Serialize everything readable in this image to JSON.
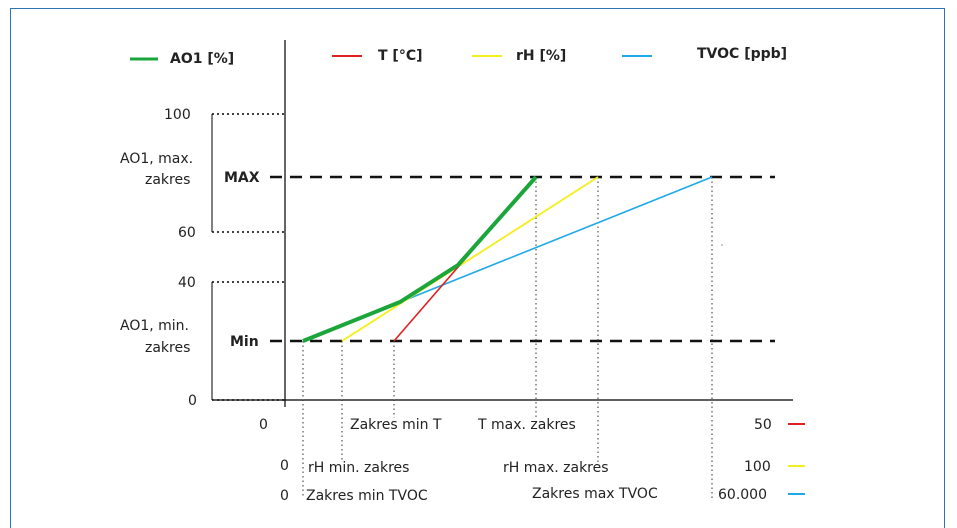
{
  "legend": [
    {
      "label": "AO1 [%]",
      "color": "#1aa63a"
    },
    {
      "label": "T [°C]",
      "color": "#e02020"
    },
    {
      "label": "rH [%]",
      "color": "#f4ee1a"
    },
    {
      "label": "TVOC [ppb]",
      "color": "#1fa9e6"
    }
  ],
  "y_axis": {
    "tick_100": "100",
    "tick_60": "60",
    "tick_40": "40",
    "tick_0": "0",
    "max_label": "MAX",
    "min_label": "Min",
    "range_max_label_1": "AO1, max.",
    "range_max_label_2": "zakres",
    "range_min_label_1": "AO1,  min.",
    "range_min_label_2": "zakres"
  },
  "x_axis": {
    "t_zero": "0",
    "t_min": "Zakres min T",
    "t_max": "T max. zakres",
    "t_end": "50",
    "rh_zero": "0",
    "rh_min": "rH min. zakres",
    "rh_max": "rH max. zakres",
    "rh_end": "100",
    "tvoc_zero": "0",
    "tvoc_min": "Zakres min TVOC",
    "tvoc_max": "Zakres max TVOC",
    "tvoc_end": "60.000"
  }
}
